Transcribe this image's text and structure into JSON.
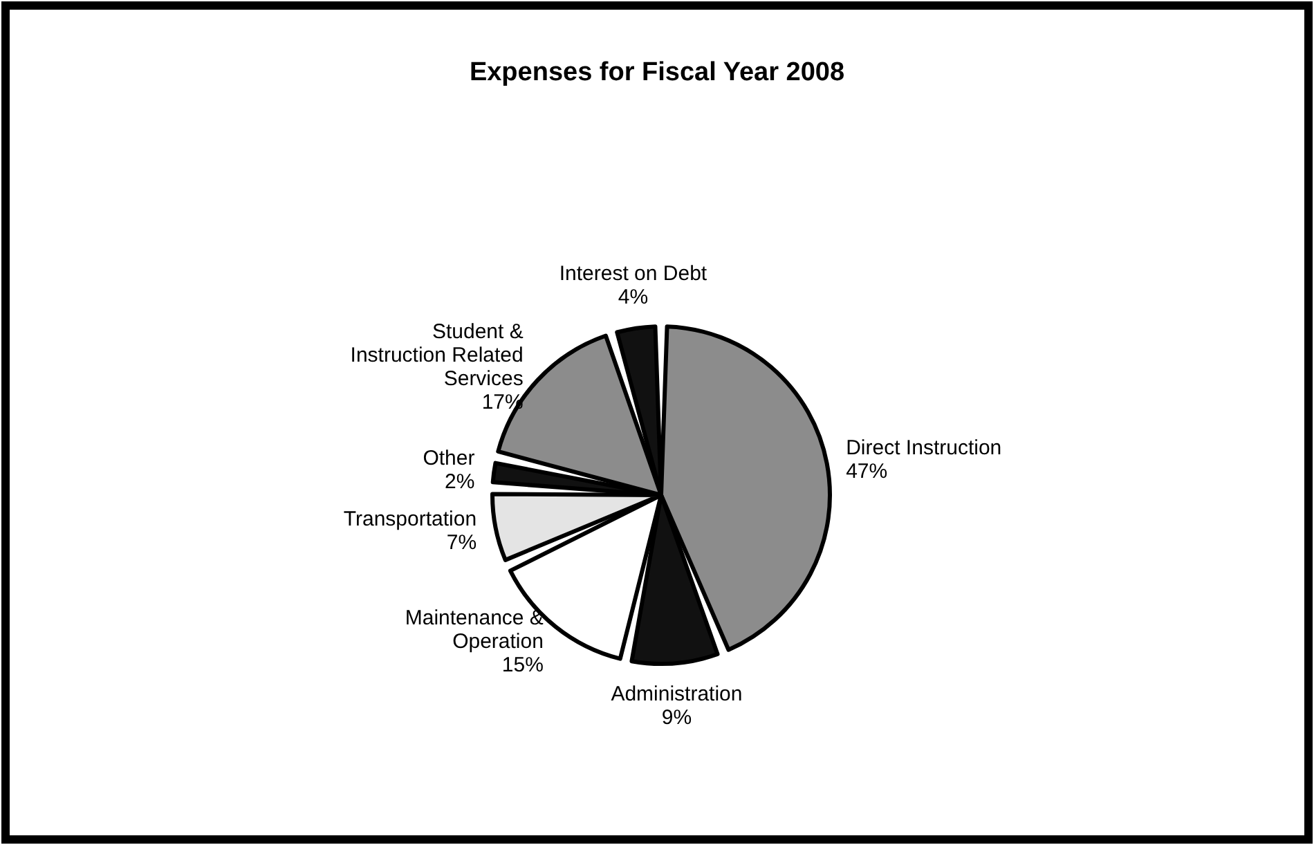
{
  "chart_data": {
    "type": "pie",
    "title": "Expenses for Fiscal Year 2008",
    "categories": [
      "Direct Instruction",
      "Administration",
      "Maintenance & Operation",
      "Transportation",
      "Other",
      "Student & Instruction Related Services",
      "Interest on Debt"
    ],
    "values": [
      47,
      9,
      15,
      7,
      2,
      17,
      4
    ],
    "value_labels": [
      "47%",
      "9%",
      "15%",
      "7%",
      "2%",
      "17%",
      "4%"
    ],
    "colors": [
      "#8c8c8c",
      "#111111",
      "#ffffff",
      "#e4e4e4",
      "#111111",
      "#8c8c8c",
      "#111111"
    ]
  }
}
